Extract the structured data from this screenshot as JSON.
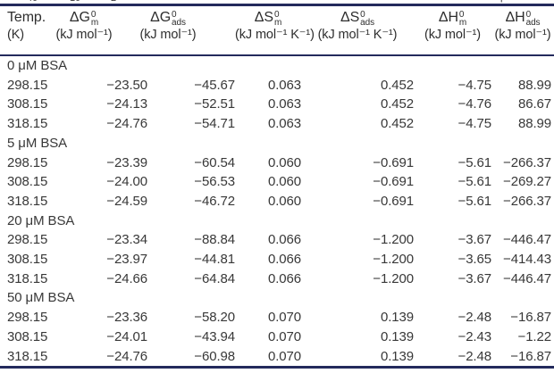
{
  "page": {
    "background": "#ffffff",
    "rule_color": "#232a5c",
    "text_color": "#383838"
  },
  "top_fragments": [
    "40",
    "10",
    "⁻",
    "2",
    "p"
  ],
  "table": {
    "columns": [
      {
        "id": "temp",
        "line1": "Temp.",
        "line2": "(K)"
      },
      {
        "id": "dG-m",
        "symbol": "ΔG",
        "sup": "0",
        "sub": "m",
        "unit": "(kJ mol⁻¹)"
      },
      {
        "id": "dG-ads",
        "symbol": "ΔG",
        "sup": "0",
        "sub": "ads",
        "unit": "(kJ mol⁻¹)"
      },
      {
        "id": "dS-m",
        "symbol": "ΔS",
        "sup": "0",
        "sub": "m",
        "unit": "(kJ mol⁻¹ K⁻¹)"
      },
      {
        "id": "dS-ads",
        "symbol": "ΔS",
        "sup": "0",
        "sub": "ads",
        "unit": "(kJ mol⁻¹ K⁻¹)"
      },
      {
        "id": "dH-m",
        "symbol": "ΔH",
        "sup": "0",
        "sub": "m",
        "unit": "(kJ mol⁻¹)"
      },
      {
        "id": "dH-ads",
        "symbol": "ΔH",
        "sup": "0",
        "sub": "ads",
        "unit": "(kJ mol⁻¹)"
      }
    ],
    "sections": [
      {
        "label": "0 μM BSA",
        "rows": [
          [
            "298.15",
            "−23.50",
            "−45.67",
            "0.063",
            "0.452",
            "−4.75",
            "88.99"
          ],
          [
            "308.15",
            "−24.13",
            "−52.51",
            "0.063",
            "0.452",
            "−4.76",
            "86.67"
          ],
          [
            "318.15",
            "−24.76",
            "−54.71",
            "0.063",
            "0.452",
            "−4.75",
            "88.99"
          ]
        ]
      },
      {
        "label": "5 μM BSA",
        "rows": [
          [
            "298.15",
            "−23.39",
            "−60.54",
            "0.060",
            "−0.691",
            "−5.61",
            "−266.37"
          ],
          [
            "308.15",
            "−24.00",
            "−56.53",
            "0.060",
            "−0.691",
            "−5.61",
            "−269.27"
          ],
          [
            "318.15",
            "−24.59",
            "−46.72",
            "0.060",
            "−0.691",
            "−5.61",
            "−266.37"
          ]
        ]
      },
      {
        "label": "20 μM BSA",
        "rows": [
          [
            "298.15",
            "−23.34",
            "−88.84",
            "0.066",
            "−1.200",
            "−3.67",
            "−446.47"
          ],
          [
            "308.15",
            "−23.97",
            "−44.81",
            "0.066",
            "−1.200",
            "−3.65",
            "−414.43"
          ],
          [
            "318.15",
            "−24.66",
            "−64.84",
            "0.066",
            "−1.200",
            "−3.67",
            "−446.47"
          ]
        ]
      },
      {
        "label": "50 μM BSA",
        "rows": [
          [
            "298.15",
            "−23.36",
            "−58.20",
            "0.070",
            "0.139",
            "−2.48",
            "−16.87"
          ],
          [
            "308.15",
            "−24.01",
            "−43.94",
            "0.070",
            "0.139",
            "−2.43",
            "−1.22"
          ],
          [
            "318.15",
            "−24.76",
            "−60.98",
            "0.070",
            "0.139",
            "−2.48",
            "−16.87"
          ]
        ]
      }
    ]
  }
}
